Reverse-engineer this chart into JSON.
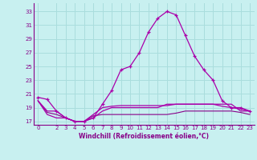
{
  "x": [
    0,
    1,
    2,
    3,
    4,
    5,
    6,
    7,
    8,
    9,
    10,
    11,
    12,
    13,
    14,
    15,
    16,
    17,
    18,
    19,
    20,
    21,
    22,
    23
  ],
  "main_temp": [
    20.5,
    20.2,
    18.5,
    17.5,
    17.0,
    17.0,
    17.5,
    19.5,
    21.5,
    24.5,
    25.0,
    27.0,
    30.0,
    32.0,
    33.0,
    32.5,
    29.5,
    26.5,
    24.5,
    23.0,
    20.0,
    19.0,
    19.0,
    18.5
  ],
  "line2": [
    20.0,
    18.5,
    18.5,
    17.5,
    17.0,
    17.0,
    18.0,
    19.0,
    19.2,
    19.3,
    19.3,
    19.3,
    19.3,
    19.3,
    19.3,
    19.5,
    19.5,
    19.5,
    19.5,
    19.5,
    19.2,
    19.0,
    18.8,
    18.5
  ],
  "line3": [
    20.0,
    18.3,
    18.0,
    17.5,
    17.0,
    17.0,
    17.8,
    18.0,
    18.0,
    18.0,
    18.0,
    18.0,
    18.0,
    18.0,
    18.0,
    18.2,
    18.5,
    18.5,
    18.5,
    18.5,
    18.5,
    18.5,
    18.3,
    18.0
  ],
  "line4": [
    20.0,
    18.0,
    17.5,
    17.5,
    17.0,
    17.0,
    17.5,
    18.5,
    19.0,
    19.0,
    19.0,
    19.0,
    19.0,
    19.0,
    19.5,
    19.5,
    19.5,
    19.5,
    19.5,
    19.5,
    19.5,
    19.5,
    18.5,
    18.5
  ],
  "line_color": "#880088",
  "line_color2": "#aa00aa",
  "bg_color": "#c8f0f0",
  "grid_color": "#aadddd",
  "ylim": [
    16.5,
    34.2
  ],
  "xlim": [
    -0.5,
    23.5
  ],
  "yticks": [
    17,
    19,
    21,
    23,
    25,
    27,
    29,
    31,
    33
  ],
  "xticks": [
    0,
    2,
    3,
    4,
    5,
    6,
    7,
    8,
    9,
    10,
    11,
    12,
    13,
    14,
    15,
    16,
    17,
    18,
    19,
    20,
    21,
    22,
    23
  ],
  "xlabel": "Windchill (Refroidissement éolien,°C)"
}
